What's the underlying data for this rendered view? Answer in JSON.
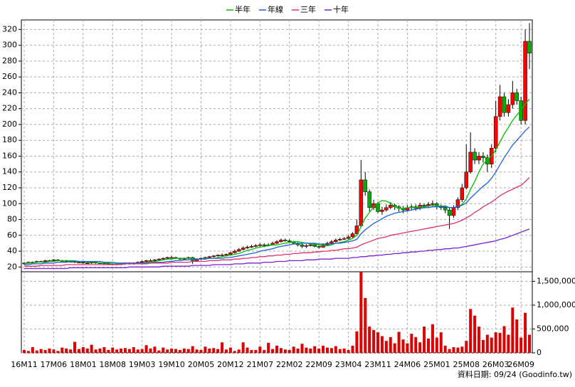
{
  "chart_data": {
    "type": "candlestick",
    "categories": [
      "16M11",
      null,
      null,
      null,
      null,
      null,
      null,
      "17M06",
      null,
      null,
      null,
      null,
      null,
      null,
      "18M01",
      null,
      null,
      null,
      null,
      null,
      null,
      "18M08",
      null,
      null,
      null,
      null,
      null,
      null,
      "19M03",
      null,
      null,
      null,
      null,
      null,
      null,
      "19M10",
      null,
      null,
      null,
      null,
      null,
      null,
      "20M05",
      null,
      null,
      null,
      null,
      null,
      null,
      "20M12",
      null,
      null,
      null,
      null,
      null,
      null,
      "21M07",
      null,
      null,
      null,
      null,
      null,
      null,
      "22M02",
      null,
      null,
      null,
      null,
      null,
      null,
      "22M09",
      null,
      null,
      null,
      null,
      null,
      null,
      "23M04",
      null,
      null,
      null,
      null,
      null,
      null,
      "23M11",
      null,
      null,
      null,
      null,
      null,
      null,
      "24M06",
      null,
      null,
      null,
      null,
      null,
      null,
      "25M01",
      null,
      null,
      null,
      null,
      null,
      null,
      "25M08",
      null,
      null,
      null,
      null,
      null,
      null,
      "26M03",
      null,
      null,
      null,
      null,
      null,
      "26M09",
      null,
      null
    ],
    "open": [
      24,
      25,
      26,
      26,
      27,
      27,
      28,
      28,
      29,
      28,
      28,
      27,
      27,
      26,
      26,
      25,
      25,
      26,
      25,
      25,
      24,
      24,
      23,
      24,
      24,
      25,
      24,
      25,
      26,
      27,
      28,
      28,
      29,
      30,
      31,
      32,
      32,
      31,
      30,
      31,
      32,
      28,
      30,
      31,
      32,
      33,
      34,
      35,
      35,
      36,
      38,
      40,
      42,
      44,
      45,
      46,
      47,
      48,
      47,
      48,
      50,
      52,
      54,
      53,
      52,
      50,
      48,
      46,
      47,
      48,
      46,
      45,
      48,
      50,
      52,
      54,
      55,
      56,
      58,
      62,
      72,
      130,
      115,
      95,
      100,
      90,
      92,
      95,
      98,
      96,
      94,
      92,
      95,
      96,
      94,
      98,
      97,
      99,
      100,
      96,
      95,
      92,
      85,
      95,
      105,
      120,
      140,
      165,
      155,
      160,
      158,
      150,
      170,
      210,
      235,
      215,
      225,
      240,
      230,
      205,
      305
    ],
    "high": [
      26,
      27,
      27,
      28,
      28,
      29,
      29,
      30,
      30,
      29,
      29,
      28,
      28,
      27,
      27,
      26,
      27,
      27,
      26,
      26,
      25,
      25,
      25,
      25,
      26,
      26,
      26,
      27,
      28,
      29,
      30,
      30,
      31,
      32,
      33,
      34,
      33,
      32,
      32,
      33,
      33,
      31,
      32,
      33,
      34,
      35,
      36,
      37,
      37,
      39,
      42,
      44,
      46,
      47,
      48,
      49,
      50,
      50,
      50,
      52,
      54,
      56,
      56,
      55,
      53,
      51,
      50,
      49,
      50,
      49,
      47,
      50,
      52,
      54,
      56,
      57,
      58,
      60,
      64,
      80,
      155,
      140,
      118,
      105,
      102,
      96,
      99,
      102,
      100,
      98,
      97,
      98,
      99,
      99,
      101,
      100,
      102,
      104,
      102,
      99,
      98,
      95,
      98,
      108,
      125,
      175,
      190,
      170,
      165,
      165,
      162,
      175,
      230,
      250,
      240,
      232,
      255,
      245,
      235,
      320,
      328
    ],
    "low": [
      23,
      24,
      25,
      25,
      26,
      26,
      27,
      27,
      27,
      27,
      26,
      26,
      25,
      25,
      24,
      24,
      24,
      24,
      24,
      23,
      23,
      22,
      22,
      23,
      23,
      23,
      23,
      24,
      25,
      26,
      27,
      27,
      28,
      29,
      30,
      31,
      30,
      29,
      29,
      30,
      24,
      27,
      29,
      30,
      31,
      32,
      33,
      34,
      34,
      35,
      37,
      39,
      41,
      43,
      44,
      45,
      46,
      45,
      46,
      47,
      49,
      51,
      52,
      51,
      49,
      46,
      44,
      44,
      46,
      45,
      43,
      44,
      47,
      49,
      51,
      53,
      54,
      55,
      57,
      61,
      70,
      110,
      90,
      92,
      88,
      86,
      90,
      93,
      92,
      90,
      88,
      90,
      92,
      91,
      92,
      94,
      95,
      96,
      93,
      92,
      88,
      68,
      82,
      92,
      102,
      118,
      138,
      150,
      150,
      152,
      140,
      145,
      165,
      205,
      210,
      210,
      220,
      225,
      200,
      200,
      270
    ],
    "close": [
      25,
      26,
      26,
      27,
      27,
      28,
      28,
      29,
      28,
      28,
      27,
      27,
      26,
      26,
      25,
      25,
      26,
      25,
      25,
      24,
      24,
      23,
      24,
      24,
      25,
      24,
      25,
      26,
      27,
      28,
      28,
      29,
      30,
      31,
      32,
      32,
      31,
      30,
      31,
      32,
      28,
      30,
      31,
      32,
      33,
      34,
      35,
      35,
      36,
      38,
      40,
      42,
      44,
      45,
      46,
      47,
      48,
      47,
      48,
      50,
      52,
      54,
      53,
      52,
      50,
      48,
      46,
      47,
      48,
      46,
      45,
      48,
      50,
      52,
      54,
      55,
      56,
      58,
      62,
      72,
      130,
      115,
      95,
      100,
      90,
      92,
      95,
      98,
      96,
      94,
      92,
      95,
      96,
      94,
      98,
      97,
      99,
      100,
      96,
      95,
      92,
      85,
      95,
      105,
      120,
      140,
      165,
      155,
      160,
      158,
      150,
      170,
      210,
      235,
      215,
      225,
      240,
      230,
      205,
      305,
      290
    ],
    "up_color": "#ff0000",
    "down_color": "#00b000",
    "ylim": [
      14,
      332
    ],
    "yticks": [
      20,
      40,
      60,
      80,
      100,
      120,
      140,
      160,
      180,
      200,
      220,
      240,
      260,
      280,
      300,
      320
    ],
    "grid": true,
    "series": [
      {
        "name": "半年",
        "color": "#00c000",
        "values": [
          24,
          25,
          25,
          26,
          26,
          26,
          27,
          27,
          28,
          28,
          28,
          28,
          28,
          27,
          27,
          26,
          26,
          26,
          25,
          25,
          25,
          24,
          24,
          24,
          24,
          24,
          24,
          25,
          25,
          26,
          26,
          27,
          28,
          29,
          30,
          30,
          31,
          31,
          31,
          31,
          31,
          30,
          30,
          31,
          31,
          31,
          32,
          33,
          34,
          35,
          36,
          37,
          39,
          41,
          42,
          44,
          45,
          46,
          47,
          48,
          48,
          49,
          50,
          51,
          52,
          52,
          51,
          50,
          49,
          49,
          48,
          47,
          47,
          48,
          50,
          51,
          52,
          54,
          56,
          60,
          71,
          82,
          89,
          96,
          101,
          104,
          103,
          101,
          96,
          94,
          94,
          95,
          95,
          95,
          96,
          96,
          97,
          98,
          97,
          97,
          97,
          95,
          95,
          96,
          99,
          106,
          118,
          128,
          140,
          150,
          156,
          160,
          168,
          178,
          188,
          196,
          205,
          212,
          218,
          226,
          232
        ]
      },
      {
        "name": "年線",
        "color": "#1f5fe0",
        "values": [
          23,
          23,
          24,
          24,
          24,
          25,
          25,
          25,
          26,
          26,
          26,
          27,
          27,
          27,
          27,
          27,
          27,
          27,
          27,
          26,
          26,
          26,
          25,
          25,
          25,
          25,
          25,
          25,
          25,
          25,
          25,
          26,
          26,
          26,
          27,
          27,
          28,
          28,
          29,
          29,
          30,
          30,
          30,
          30,
          31,
          31,
          31,
          31,
          32,
          32,
          33,
          34,
          35,
          36,
          37,
          38,
          40,
          41,
          42,
          43,
          45,
          46,
          47,
          48,
          49,
          49,
          50,
          50,
          50,
          50,
          49,
          49,
          49,
          49,
          50,
          50,
          51,
          52,
          53,
          55,
          62,
          67,
          71,
          75,
          78,
          81,
          84,
          86,
          88,
          89,
          90,
          91,
          92,
          93,
          94,
          95,
          95,
          96,
          96,
          96,
          96,
          95,
          95,
          96,
          98,
          101,
          107,
          112,
          117,
          122,
          126,
          132,
          140,
          149,
          158,
          166,
          174,
          180,
          186,
          192,
          197
        ]
      },
      {
        "name": "三年",
        "color": "#e0306a",
        "values": [
          21,
          21,
          21,
          21,
          22,
          22,
          22,
          22,
          22,
          22,
          23,
          23,
          23,
          23,
          23,
          23,
          23,
          23,
          23,
          23,
          23,
          23,
          23,
          23,
          24,
          24,
          24,
          24,
          24,
          24,
          25,
          25,
          25,
          25,
          25,
          26,
          26,
          26,
          26,
          26,
          27,
          27,
          27,
          27,
          28,
          28,
          28,
          29,
          29,
          29,
          30,
          30,
          31,
          31,
          32,
          32,
          33,
          33,
          34,
          34,
          35,
          35,
          36,
          36,
          37,
          37,
          38,
          38,
          38,
          39,
          39,
          40,
          40,
          41,
          41,
          42,
          43,
          43,
          44,
          45,
          48,
          50,
          52,
          54,
          56,
          57,
          58,
          60,
          61,
          62,
          63,
          64,
          65,
          66,
          67,
          68,
          69,
          70,
          71,
          72,
          73,
          74,
          75,
          77,
          79,
          82,
          85,
          89,
          92,
          96,
          99,
          102,
          106,
          110,
          113,
          116,
          118,
          121,
          123,
          128,
          133
        ]
      },
      {
        "name": "十年",
        "color": "#7a1fd6",
        "values": [
          18,
          18,
          18,
          18,
          18,
          18,
          18,
          18,
          18,
          18,
          18,
          19,
          19,
          19,
          19,
          19,
          19,
          19,
          19,
          19,
          19,
          19,
          19,
          19,
          19,
          20,
          20,
          20,
          20,
          20,
          20,
          20,
          20,
          21,
          21,
          21,
          21,
          21,
          21,
          21,
          22,
          22,
          22,
          22,
          22,
          23,
          23,
          23,
          23,
          23,
          24,
          24,
          24,
          25,
          25,
          25,
          25,
          26,
          26,
          26,
          27,
          27,
          27,
          28,
          28,
          28,
          28,
          29,
          29,
          29,
          30,
          30,
          30,
          30,
          31,
          31,
          31,
          31,
          32,
          32,
          33,
          33,
          34,
          34,
          35,
          35,
          36,
          36,
          37,
          37,
          38,
          38,
          39,
          39,
          40,
          40,
          41,
          41,
          42,
          42,
          43,
          43,
          44,
          44,
          45,
          46,
          47,
          48,
          49,
          50,
          51,
          52,
          53,
          55,
          56,
          58,
          60,
          62,
          64,
          66,
          68
        ]
      }
    ],
    "volume": {
      "color": "#dd0000",
      "ylim": [
        0,
        1700000
      ],
      "yticks": [
        0,
        {
          "value": 500000,
          "label": "500,000"
        },
        {
          "value": 1000000,
          "label": "1,000,000"
        },
        {
          "value": 1500000,
          "label": "1,500,000"
        }
      ],
      "values": [
        60000,
        40000,
        120000,
        50000,
        80000,
        60000,
        90000,
        70000,
        40000,
        110000,
        90000,
        70000,
        230000,
        80000,
        120000,
        90000,
        170000,
        70000,
        90000,
        120000,
        60000,
        110000,
        70000,
        90000,
        100000,
        80000,
        120000,
        70000,
        80000,
        160000,
        90000,
        130000,
        50000,
        110000,
        70000,
        90000,
        80000,
        60000,
        90000,
        80000,
        140000,
        70000,
        60000,
        130000,
        90000,
        100000,
        80000,
        220000,
        70000,
        110000,
        40000,
        70000,
        220000,
        110000,
        60000,
        60000,
        130000,
        60000,
        210000,
        80000,
        150000,
        100000,
        70000,
        60000,
        130000,
        90000,
        190000,
        110000,
        90000,
        140000,
        90000,
        150000,
        110000,
        100000,
        140000,
        80000,
        90000,
        60000,
        150000,
        450000,
        1700000,
        1150000,
        550000,
        480000,
        430000,
        350000,
        250000,
        330000,
        200000,
        440000,
        280000,
        200000,
        400000,
        330000,
        220000,
        550000,
        300000,
        600000,
        320000,
        430000,
        150000,
        80000,
        120000,
        110000,
        130000,
        250000,
        920000,
        780000,
        550000,
        270000,
        380000,
        320000,
        430000,
        420000,
        560000,
        380000,
        950000,
        700000,
        320000,
        840000,
        380000
      ]
    },
    "footnote": "資料日期: 09/24  (Goodinfo.tw)"
  }
}
